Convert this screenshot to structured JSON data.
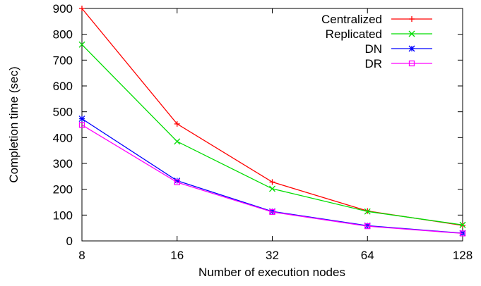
{
  "chart_data": {
    "type": "line",
    "title": "",
    "xlabel": "Number of execution nodes",
    "ylabel": "Completion time (sec)",
    "x_scale": "log2",
    "x": [
      8,
      16,
      32,
      64,
      128
    ],
    "xticks": [
      "8",
      "16",
      "32",
      "64",
      "128"
    ],
    "ylim": [
      0,
      900
    ],
    "yticks": [
      "0",
      "100",
      "200",
      "300",
      "400",
      "500",
      "600",
      "700",
      "800",
      "900"
    ],
    "grid": false,
    "legend_position": "top-right",
    "series": [
      {
        "name": "Centralized",
        "color": "#ff0000",
        "marker": "plus",
        "values": [
          900,
          453,
          228,
          116,
          60
        ]
      },
      {
        "name": "Replicated",
        "color": "#00dd00",
        "marker": "cross",
        "values": [
          760,
          385,
          202,
          114,
          62
        ]
      },
      {
        "name": "DN",
        "color": "#0000ff",
        "marker": "star",
        "values": [
          473,
          233,
          114,
          59,
          30
        ]
      },
      {
        "name": "DR",
        "color": "#ff00ff",
        "marker": "square",
        "values": [
          449,
          227,
          112,
          57,
          29
        ]
      }
    ]
  }
}
